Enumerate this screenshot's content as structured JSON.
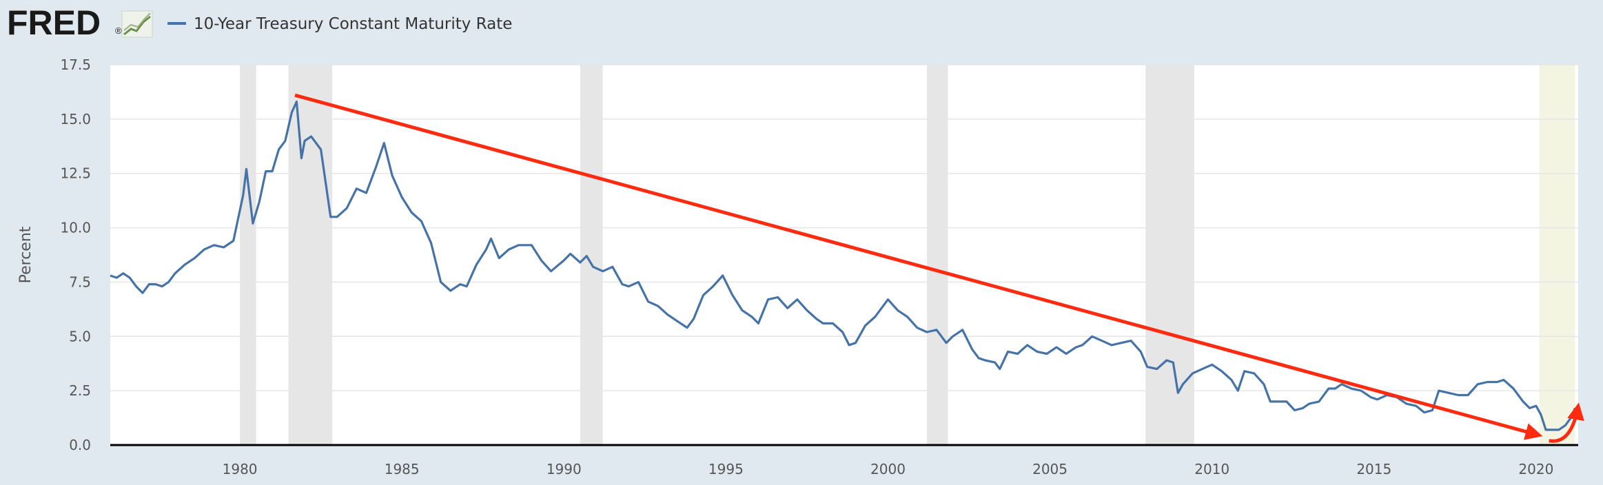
{
  "header": {
    "logo_text": "FRED",
    "logo_mark": "®",
    "logo_icon": "trend-chart-icon",
    "legend_label": "10-Year Treasury Constant Maturity Rate"
  },
  "colors": {
    "background": "#e1e9f0",
    "plot_area": "#ffffff",
    "series_line": "#4572a7",
    "recession_band": "#e6e6e6",
    "highlight_band": "#f4f4e2",
    "annotation": "#ff2a10",
    "grid": "#e6e6e6",
    "axis": "#000000"
  },
  "chart_data": {
    "type": "line",
    "title": "",
    "xlabel": "",
    "ylabel": "Percent",
    "xlim": [
      1976.0,
      2021.3
    ],
    "ylim": [
      0,
      17.5
    ],
    "yticks": [
      "0.0",
      "2.5",
      "5.0",
      "7.5",
      "10.0",
      "12.5",
      "15.0",
      "17.5"
    ],
    "xticks": [
      "1980",
      "1985",
      "1990",
      "1995",
      "2000",
      "2005",
      "2010",
      "2015",
      "2020"
    ],
    "grid": true,
    "legend": "top-left",
    "series": [
      {
        "name": "10-Year Treasury Constant Maturity Rate",
        "x": [
          1976.0,
          1976.2,
          1976.4,
          1976.6,
          1976.8,
          1977.0,
          1977.2,
          1977.4,
          1977.6,
          1977.8,
          1978.0,
          1978.3,
          1978.6,
          1978.9,
          1979.2,
          1979.5,
          1979.8,
          1980.0,
          1980.1,
          1980.2,
          1980.4,
          1980.6,
          1980.8,
          1981.0,
          1981.2,
          1981.4,
          1981.6,
          1981.75,
          1981.9,
          1982.0,
          1982.2,
          1982.5,
          1982.8,
          1983.0,
          1983.3,
          1983.6,
          1983.9,
          1984.2,
          1984.45,
          1984.7,
          1985.0,
          1985.3,
          1985.6,
          1985.9,
          1986.2,
          1986.5,
          1986.8,
          1987.0,
          1987.3,
          1987.6,
          1987.75,
          1988.0,
          1988.3,
          1988.6,
          1989.0,
          1989.3,
          1989.6,
          1990.0,
          1990.2,
          1990.5,
          1990.7,
          1990.9,
          1991.2,
          1991.5,
          1991.8,
          1992.0,
          1992.3,
          1992.6,
          1992.9,
          1993.2,
          1993.5,
          1993.8,
          1994.0,
          1994.3,
          1994.6,
          1994.9,
          1995.2,
          1995.5,
          1995.8,
          1996.0,
          1996.3,
          1996.6,
          1996.9,
          1997.2,
          1997.5,
          1997.8,
          1998.0,
          1998.3,
          1998.6,
          1998.8,
          1999.0,
          1999.3,
          1999.6,
          2000.0,
          2000.3,
          2000.6,
          2000.9,
          2001.2,
          2001.5,
          2001.8,
          2002.0,
          2002.3,
          2002.6,
          2002.8,
          2003.0,
          2003.3,
          2003.45,
          2003.7,
          2004.0,
          2004.3,
          2004.6,
          2004.9,
          2005.2,
          2005.5,
          2005.8,
          2006.0,
          2006.3,
          2006.6,
          2006.9,
          2007.2,
          2007.5,
          2007.8,
          2008.0,
          2008.3,
          2008.6,
          2008.8,
          2008.95,
          2009.1,
          2009.4,
          2009.7,
          2010.0,
          2010.3,
          2010.6,
          2010.8,
          2011.0,
          2011.3,
          2011.6,
          2011.8,
          2012.0,
          2012.3,
          2012.55,
          2012.8,
          2013.0,
          2013.3,
          2013.6,
          2013.8,
          2014.0,
          2014.3,
          2014.6,
          2014.9,
          2015.1,
          2015.4,
          2015.7,
          2016.0,
          2016.3,
          2016.55,
          2016.8,
          2017.0,
          2017.3,
          2017.6,
          2017.9,
          2018.2,
          2018.5,
          2018.8,
          2019.0,
          2019.3,
          2019.6,
          2019.8,
          2020.0,
          2020.15,
          2020.3,
          2020.5,
          2020.7,
          2020.9,
          2021.1,
          2021.2
        ],
        "values": [
          7.8,
          7.7,
          7.9,
          7.7,
          7.3,
          7.0,
          7.4,
          7.4,
          7.3,
          7.5,
          7.9,
          8.3,
          8.6,
          9.0,
          9.2,
          9.1,
          9.4,
          10.8,
          11.5,
          12.7,
          10.2,
          11.2,
          12.6,
          12.6,
          13.6,
          14.0,
          15.3,
          15.8,
          13.2,
          14.0,
          14.2,
          13.6,
          10.5,
          10.5,
          10.9,
          11.8,
          11.6,
          12.8,
          13.9,
          12.4,
          11.4,
          10.7,
          10.3,
          9.3,
          7.5,
          7.1,
          7.4,
          7.3,
          8.3,
          9.0,
          9.5,
          8.6,
          9.0,
          9.2,
          9.2,
          8.5,
          8.0,
          8.5,
          8.8,
          8.4,
          8.7,
          8.2,
          8.0,
          8.2,
          7.4,
          7.3,
          7.5,
          6.6,
          6.4,
          6.0,
          5.7,
          5.4,
          5.8,
          6.9,
          7.3,
          7.8,
          6.9,
          6.2,
          5.9,
          5.6,
          6.7,
          6.8,
          6.3,
          6.7,
          6.2,
          5.8,
          5.6,
          5.6,
          5.2,
          4.6,
          4.7,
          5.5,
          5.9,
          6.7,
          6.2,
          5.9,
          5.4,
          5.2,
          5.3,
          4.7,
          5.0,
          5.3,
          4.4,
          4.0,
          3.9,
          3.8,
          3.5,
          4.3,
          4.2,
          4.6,
          4.3,
          4.2,
          4.5,
          4.2,
          4.5,
          4.6,
          5.0,
          4.8,
          4.6,
          4.7,
          4.8,
          4.3,
          3.6,
          3.5,
          3.9,
          3.8,
          2.4,
          2.8,
          3.3,
          3.5,
          3.7,
          3.4,
          3.0,
          2.5,
          3.4,
          3.3,
          2.8,
          2.0,
          2.0,
          2.0,
          1.6,
          1.7,
          1.9,
          2.0,
          2.6,
          2.6,
          2.8,
          2.6,
          2.5,
          2.2,
          2.1,
          2.3,
          2.2,
          1.9,
          1.8,
          1.5,
          1.6,
          2.5,
          2.4,
          2.3,
          2.3,
          2.8,
          2.9,
          2.9,
          3.0,
          2.6,
          2.0,
          1.7,
          1.8,
          1.4,
          0.7,
          0.7,
          0.7,
          0.9,
          1.3,
          1.7
        ]
      }
    ],
    "recessions": [
      [
        1980.0,
        1980.5
      ],
      [
        1981.5,
        1982.85
      ],
      [
        1990.5,
        1991.2
      ],
      [
        2001.2,
        2001.85
      ],
      [
        2007.95,
        2009.45
      ]
    ],
    "highlight_period": [
      2020.1,
      2021.2
    ],
    "annotations": [
      {
        "type": "trend-arrow",
        "from": [
          1981.7,
          16.1
        ],
        "to": [
          2020.1,
          0.45
        ]
      },
      {
        "type": "curved-arrow",
        "from": [
          2020.4,
          0.2
        ],
        "to": [
          2021.3,
          1.8
        ]
      }
    ]
  }
}
